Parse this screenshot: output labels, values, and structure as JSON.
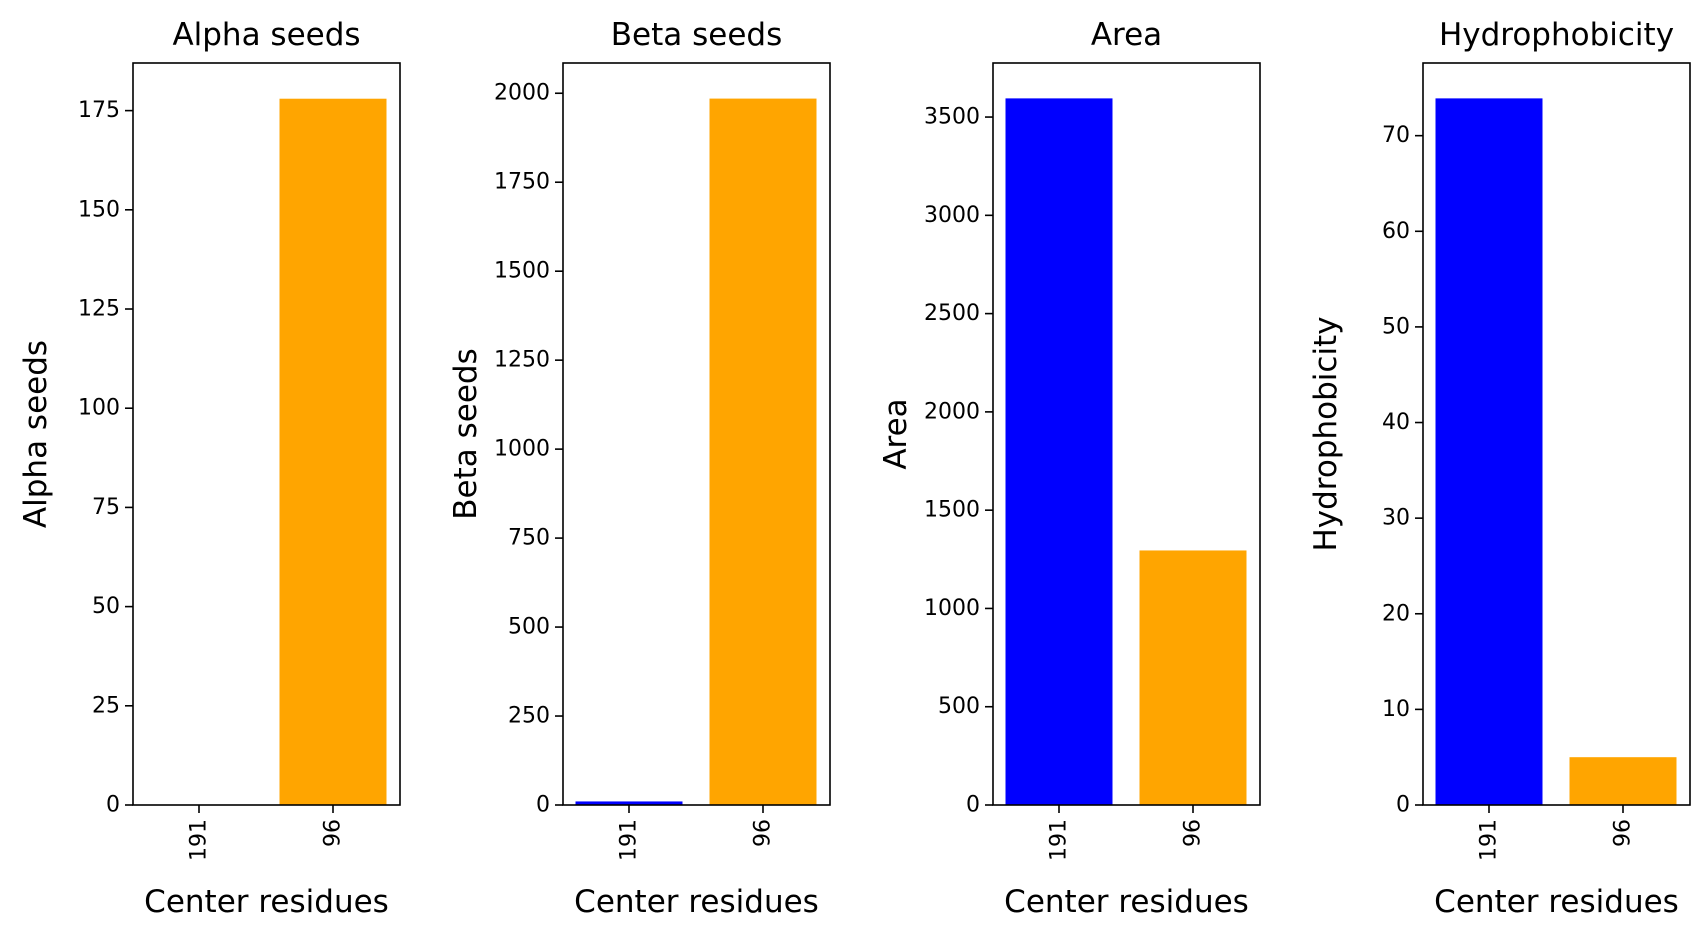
{
  "chart_data": [
    {
      "type": "bar",
      "title": "Alpha seeds",
      "xlabel": "Center residues",
      "ylabel": "Alpha seeds",
      "categories": [
        "191",
        "96"
      ],
      "values": [
        0,
        178
      ],
      "colors": [
        "#0000ff",
        "#ffa500"
      ],
      "ylim": [
        0,
        187
      ],
      "yticks": [
        0,
        25,
        50,
        75,
        100,
        125,
        150,
        175
      ],
      "ytick_labels": [
        "0",
        "25",
        "50",
        "75",
        "100",
        "125",
        "150",
        "175"
      ]
    },
    {
      "type": "bar",
      "title": "Beta seeds",
      "xlabel": "Center residues",
      "ylabel": "Beta seeds",
      "categories": [
        "191",
        "96"
      ],
      "values": [
        10,
        1985
      ],
      "colors": [
        "#0000ff",
        "#ffa500"
      ],
      "ylim": [
        0,
        2085
      ],
      "yticks": [
        0,
        250,
        500,
        750,
        1000,
        1250,
        1500,
        1750,
        2000
      ],
      "ytick_labels": [
        "0",
        "250",
        "500",
        "750",
        "1000",
        "1250",
        "1500",
        "1750",
        "2000"
      ]
    },
    {
      "type": "bar",
      "title": "Area",
      "xlabel": "Center residues",
      "ylabel": "Area",
      "categories": [
        "191",
        "96"
      ],
      "values": [
        3595,
        1295
      ],
      "colors": [
        "#0000ff",
        "#ffa500"
      ],
      "ylim": [
        0,
        3775
      ],
      "yticks": [
        0,
        500,
        1000,
        1500,
        2000,
        2500,
        3000,
        3500
      ],
      "ytick_labels": [
        "0",
        "500",
        "1000",
        "1500",
        "2000",
        "2500",
        "3000",
        "3500"
      ]
    },
    {
      "type": "bar",
      "title": "Hydrophobicity",
      "xlabel": "Center residues",
      "ylabel": "Hydrophobicity",
      "categories": [
        "191",
        "96"
      ],
      "values": [
        73.9,
        5
      ],
      "colors": [
        "#0000ff",
        "#ffa500"
      ],
      "ylim": [
        0,
        77.6
      ],
      "yticks": [
        0,
        10,
        20,
        30,
        40,
        50,
        60,
        70
      ],
      "ytick_labels": [
        "0",
        "10",
        "20",
        "30",
        "40",
        "50",
        "60",
        "70"
      ]
    }
  ]
}
